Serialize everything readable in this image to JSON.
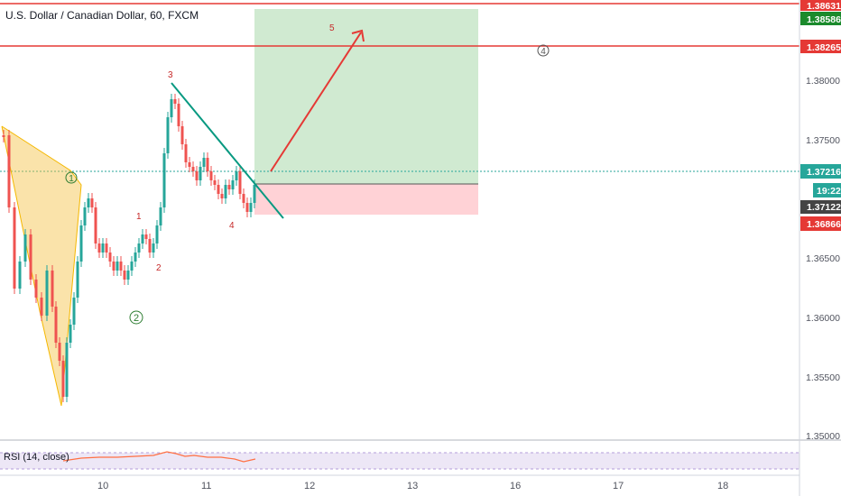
{
  "header": {
    "symbol_title": "U.S. Dollar / Canadian Dollar, 60, FXCM"
  },
  "indicator": {
    "label": "RSI (14, close)"
  },
  "x_axis": {
    "ticks": [
      "10",
      "11",
      "12",
      "13",
      "16",
      "17",
      "18"
    ]
  },
  "y_axis": {
    "ticks": [
      "1.38000",
      "1.37500",
      "1.36500",
      "1.36000",
      "1.35500",
      "1.35000"
    ]
  },
  "price_tags": [
    {
      "label": "1.38631",
      "color": "#e53935"
    },
    {
      "label": "1.38586",
      "color": "#1b8a2c"
    },
    {
      "label": "1.38265",
      "color": "#e53935"
    },
    {
      "label": "1.37216",
      "color": "#26a69a"
    },
    {
      "label": "19:22",
      "color": "#26a69a"
    },
    {
      "label": "1.37122",
      "color": "#444444"
    },
    {
      "label": "1.36866",
      "color": "#e53935"
    }
  ],
  "annotations": {
    "wave_labels": [
      "1",
      "2",
      "3",
      "4",
      "5"
    ],
    "circled_labels": [
      "1",
      "2",
      "4"
    ]
  },
  "colors": {
    "up": "#26a69a",
    "down": "#ef5350",
    "target_zone": "#c8e6c9",
    "stop_zone": "#ffcdd2",
    "harmonic": "#f5c242",
    "trendline": "#089981",
    "level_line": "#e53935"
  }
}
